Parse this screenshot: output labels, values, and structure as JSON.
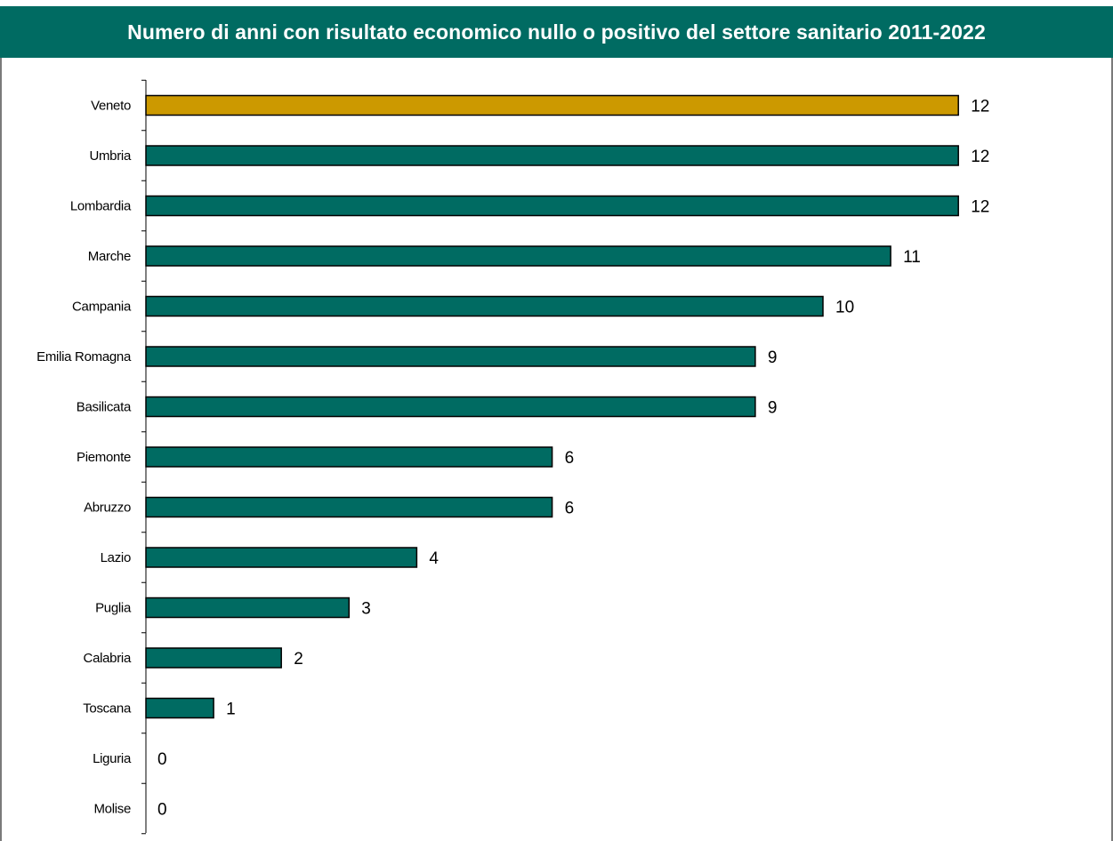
{
  "chart_data": {
    "type": "bar",
    "orientation": "horizontal",
    "title": "Numero di anni con risultato economico nullo o positivo del settore sanitario 2011-2022",
    "categories": [
      "Veneto",
      "Umbria",
      "Lombardia",
      "Marche",
      "Campania",
      "Emilia Romagna",
      "Basilicata",
      "Piemonte",
      "Abruzzo",
      "Lazio",
      "Puglia",
      "Calabria",
      "Toscana",
      "Liguria",
      "Molise"
    ],
    "values": [
      12,
      12,
      12,
      11,
      10,
      9,
      9,
      6,
      6,
      4,
      3,
      2,
      1,
      0,
      0
    ],
    "xlim": [
      0,
      12
    ],
    "grid": false,
    "data_labels": true,
    "colors": {
      "default_bar": "#006b62",
      "highlight_bar": "#cc9900",
      "title_background": "#006b62",
      "title_text": "#ffffff"
    },
    "highlight_category": "Veneto"
  }
}
